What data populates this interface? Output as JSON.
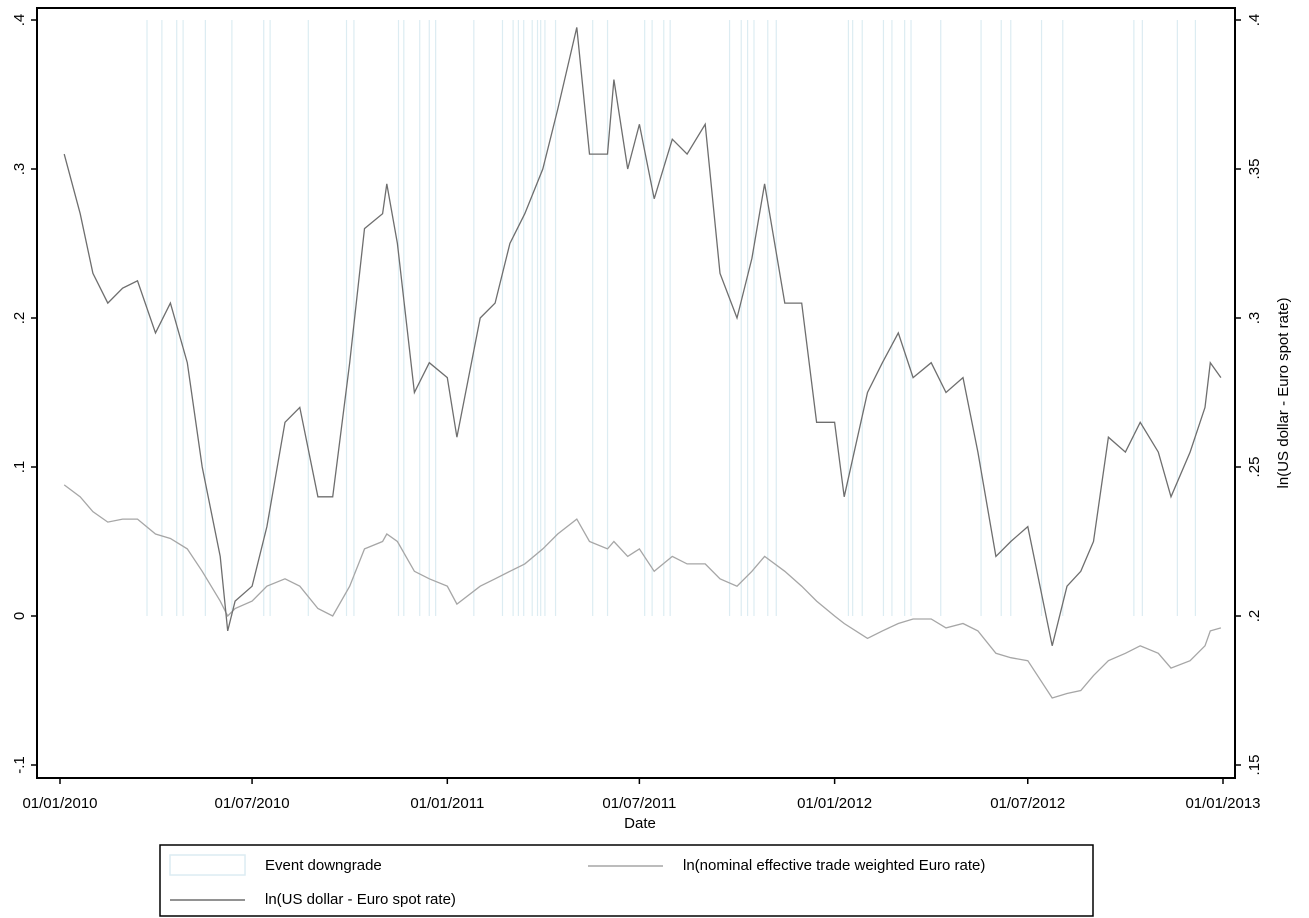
{
  "chart_data": {
    "type": "line",
    "x_label": "Date",
    "y2_label": "ln(US dollar - Euro spot rate)",
    "x": [
      "2010-01-05",
      "2010-01-20",
      "2010-02-01",
      "2010-02-15",
      "2010-03-01",
      "2010-03-15",
      "2010-04-01",
      "2010-04-15",
      "2010-05-01",
      "2010-05-15",
      "2010-06-01",
      "2010-06-08",
      "2010-06-15",
      "2010-07-01",
      "2010-07-15",
      "2010-08-01",
      "2010-08-15",
      "2010-09-01",
      "2010-09-15",
      "2010-10-01",
      "2010-10-15",
      "2010-11-01",
      "2010-11-05",
      "2010-11-15",
      "2010-12-01",
      "2010-12-15",
      "2011-01-01",
      "2011-01-10",
      "2011-02-01",
      "2011-02-15",
      "2011-03-01",
      "2011-03-15",
      "2011-04-01",
      "2011-04-15",
      "2011-05-03",
      "2011-05-15",
      "2011-06-01",
      "2011-06-07",
      "2011-06-20",
      "2011-07-01",
      "2011-07-15",
      "2011-08-01",
      "2011-08-15",
      "2011-09-01",
      "2011-09-15",
      "2011-10-01",
      "2011-10-15",
      "2011-10-27",
      "2011-11-15",
      "2011-12-01",
      "2011-12-15",
      "2012-01-01",
      "2012-01-10",
      "2012-02-01",
      "2012-02-15",
      "2012-03-01",
      "2012-03-15",
      "2012-04-01",
      "2012-04-15",
      "2012-05-01",
      "2012-05-15",
      "2012-06-01",
      "2012-06-15",
      "2012-07-01",
      "2012-07-24",
      "2012-08-07",
      "2012-08-20",
      "2012-09-01",
      "2012-09-15",
      "2012-10-01",
      "2012-10-15",
      "2012-11-01",
      "2012-11-13",
      "2012-12-01",
      "2012-12-15",
      "2012-12-20",
      "2012-12-30"
    ],
    "events": {
      "name": "Event downgrade",
      "color": "#dcecf2",
      "x": [
        "2010-03-24",
        "2010-04-07",
        "2010-04-21",
        "2010-04-27",
        "2010-05-18",
        "2010-06-12",
        "2010-07-12",
        "2010-07-18",
        "2010-08-23",
        "2010-09-28",
        "2010-10-05",
        "2010-11-16",
        "2010-11-21",
        "2010-12-06",
        "2010-12-15",
        "2010-12-21",
        "2011-01-26",
        "2011-02-22",
        "2011-03-04",
        "2011-03-09",
        "2011-03-14",
        "2011-03-22",
        "2011-03-27",
        "2011-03-30",
        "2011-04-03",
        "2011-04-13",
        "2011-05-18",
        "2011-06-01",
        "2011-07-06",
        "2011-07-13",
        "2011-07-24",
        "2011-07-30",
        "2011-09-24",
        "2011-10-05",
        "2011-10-11",
        "2011-10-17",
        "2011-10-30",
        "2011-11-07",
        "2012-01-14",
        "2012-01-18",
        "2012-01-27",
        "2012-02-16",
        "2012-02-24",
        "2012-03-07",
        "2012-03-13",
        "2012-04-10",
        "2012-05-18",
        "2012-06-06",
        "2012-06-15",
        "2012-07-14",
        "2012-08-03",
        "2012-10-09",
        "2012-10-17",
        "2012-11-19",
        "2012-12-06"
      ]
    },
    "series": [
      {
        "name": "ln(nominal effective trade weighted Euro rate)",
        "color": "#a6a6a6",
        "values": [
          0.088,
          0.08,
          0.07,
          0.063,
          0.065,
          0.065,
          0.055,
          0.052,
          0.045,
          0.03,
          0.01,
          0.0,
          0.005,
          0.01,
          0.02,
          0.025,
          0.02,
          0.005,
          0.0,
          0.02,
          0.045,
          0.05,
          0.055,
          0.05,
          0.03,
          0.025,
          0.02,
          0.008,
          0.02,
          0.025,
          0.03,
          0.035,
          0.045,
          0.055,
          0.065,
          0.05,
          0.045,
          0.05,
          0.04,
          0.045,
          0.03,
          0.04,
          0.035,
          0.035,
          0.025,
          0.02,
          0.03,
          0.04,
          0.03,
          0.02,
          0.01,
          0,
          -0.005,
          -0.015,
          -0.01,
          -0.005,
          -0.002,
          -0.002,
          -0.008,
          -0.005,
          -0.01,
          -0.025,
          -0.028,
          -0.03,
          -0.055,
          -0.052,
          -0.05,
          -0.04,
          -0.03,
          -0.025,
          -0.02,
          -0.025,
          -0.035,
          -0.03,
          -0.02,
          -0.01,
          -0.008
        ]
      },
      {
        "name": "ln(US dollar - Euro spot rate)",
        "color": "#6e6e6e",
        "axis": "y2",
        "values": [
          0.355,
          0.335,
          0.315,
          0.305,
          0.31,
          0.3125,
          0.295,
          0.305,
          0.285,
          0.25,
          0.22,
          0.195,
          0.205,
          0.21,
          0.23,
          0.265,
          0.27,
          0.24,
          0.24,
          0.285,
          0.33,
          0.335,
          0.345,
          0.325,
          0.275,
          0.285,
          0.28,
          0.26,
          0.3,
          0.305,
          0.325,
          0.335,
          0.35,
          0.37,
          0.3975,
          0.355,
          0.355,
          0.38,
          0.35,
          0.365,
          0.34,
          0.36,
          0.355,
          0.365,
          0.315,
          0.3,
          0.32,
          0.345,
          0.305,
          0.305,
          0.265,
          0.265,
          0.24,
          0.275,
          0.285,
          0.295,
          0.28,
          0.285,
          0.275,
          0.28,
          0.255,
          0.22,
          0.225,
          0.23,
          0.19,
          0.21,
          0.215,
          0.225,
          0.26,
          0.255,
          0.265,
          0.255,
          0.24,
          0.255,
          0.27,
          0.285,
          0.28
        ]
      }
    ],
    "xlim": [
      "2010-01-01",
      "2013-01-01"
    ],
    "xticks": [
      {
        "value": "2010-01-01",
        "label": "01/01/2010"
      },
      {
        "value": "2010-07-01",
        "label": "01/07/2010"
      },
      {
        "value": "2011-01-01",
        "label": "01/01/2011"
      },
      {
        "value": "2011-07-01",
        "label": "01/07/2011"
      },
      {
        "value": "2012-01-01",
        "label": "01/01/2012"
      },
      {
        "value": "2012-07-01",
        "label": "01/07/2012"
      },
      {
        "value": "2013-01-01",
        "label": "01/01/2013"
      }
    ],
    "ylim": [
      -0.1,
      0.4
    ],
    "yticks": [
      {
        "value": -0.1,
        "label": "-.1"
      },
      0,
      {
        "value": 0.1,
        "label": ".1"
      },
      {
        "value": 0.2,
        "label": ".2"
      },
      {
        "value": 0.3,
        "label": ".3"
      },
      {
        "value": 0.4,
        "label": ".4"
      }
    ],
    "y2lim": [
      0.15,
      0.4
    ],
    "y2ticks": [
      {
        "value": 0.15,
        "label": ".15"
      },
      {
        "value": 0.2,
        "label": ".2"
      },
      {
        "value": 0.25,
        "label": ".25"
      },
      {
        "value": 0.3,
        "label": ".3"
      },
      {
        "value": 0.35,
        "label": ".35"
      },
      {
        "value": 0.4,
        "label": ".4"
      }
    ]
  }
}
